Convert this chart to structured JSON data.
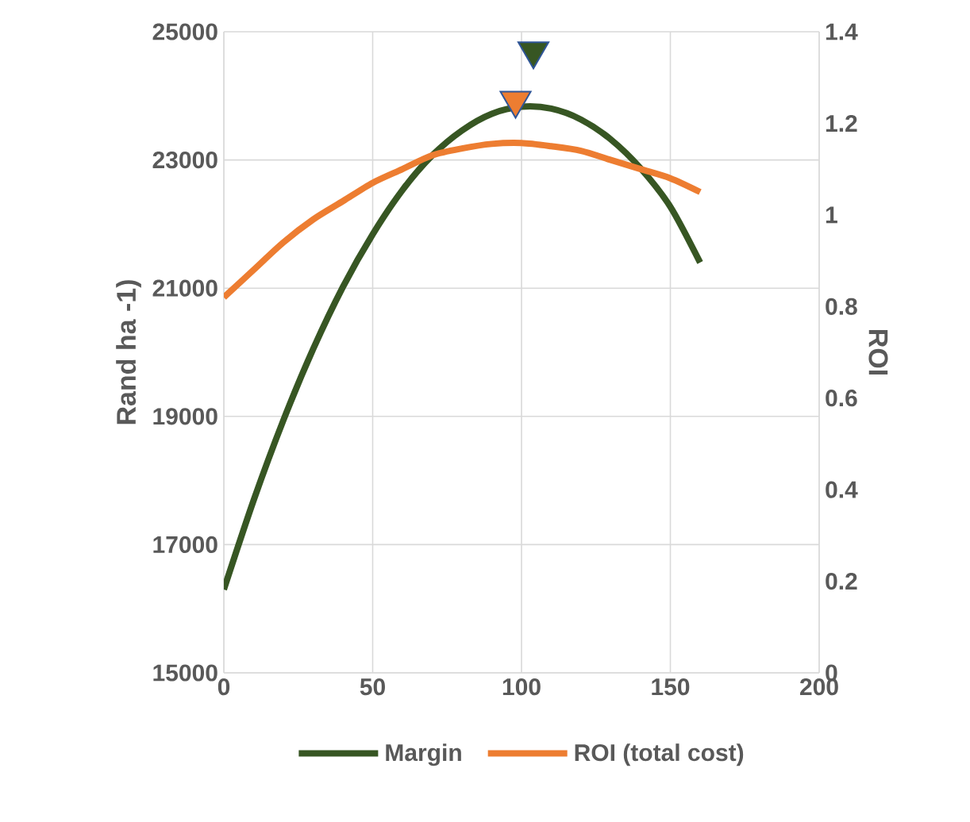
{
  "chart_data": {
    "type": "line",
    "xlabel": null,
    "ylabel": "Rand ha -1)",
    "y2label": "ROI",
    "x": [
      0,
      10,
      20,
      30,
      40,
      50,
      60,
      70,
      80,
      90,
      100,
      110,
      120,
      130,
      140,
      150,
      160
    ],
    "series": [
      {
        "name": "Margin",
        "color": "#375623",
        "marker": "none",
        "values": [
          16300,
          17690,
          18940,
          20050,
          21020,
          21840,
          22530,
          23070,
          23460,
          23720,
          23830,
          23800,
          23630,
          23320,
          22870,
          22270,
          21400
        ]
      },
      {
        "name": "ROI (total cost)",
        "color": "#ed7d31",
        "marker": "none",
        "axis": "y2",
        "values": [
          0.82,
          0.88,
          0.94,
          0.99,
          1.03,
          1.07,
          1.1,
          1.13,
          1.145,
          1.155,
          1.157,
          1.15,
          1.14,
          1.12,
          1.1,
          1.08,
          1.05
        ]
      },
      {
        "type": "scatter",
        "color": "#375623",
        "marker": "triangle",
        "x": [
          104
        ],
        "values": [
          24700
        ]
      },
      {
        "type": "scatter",
        "color": "#ed7d31",
        "marker": "triangle",
        "axis": "y2",
        "x": [
          98
        ],
        "values": [
          1.25
        ]
      }
    ],
    "xlim": [
      0,
      200
    ],
    "xticks": [
      0,
      50,
      100,
      150,
      200
    ],
    "ylim": [
      15000,
      25000
    ],
    "yticks": [
      15000,
      17000,
      19000,
      21000,
      23000,
      25000
    ],
    "y2lim": [
      0,
      1.4
    ],
    "y2ticks": [
      0,
      0.2,
      0.4,
      0.6,
      0.8,
      1,
      1.2,
      1.4
    ],
    "grid": true,
    "legend": "bottom"
  }
}
